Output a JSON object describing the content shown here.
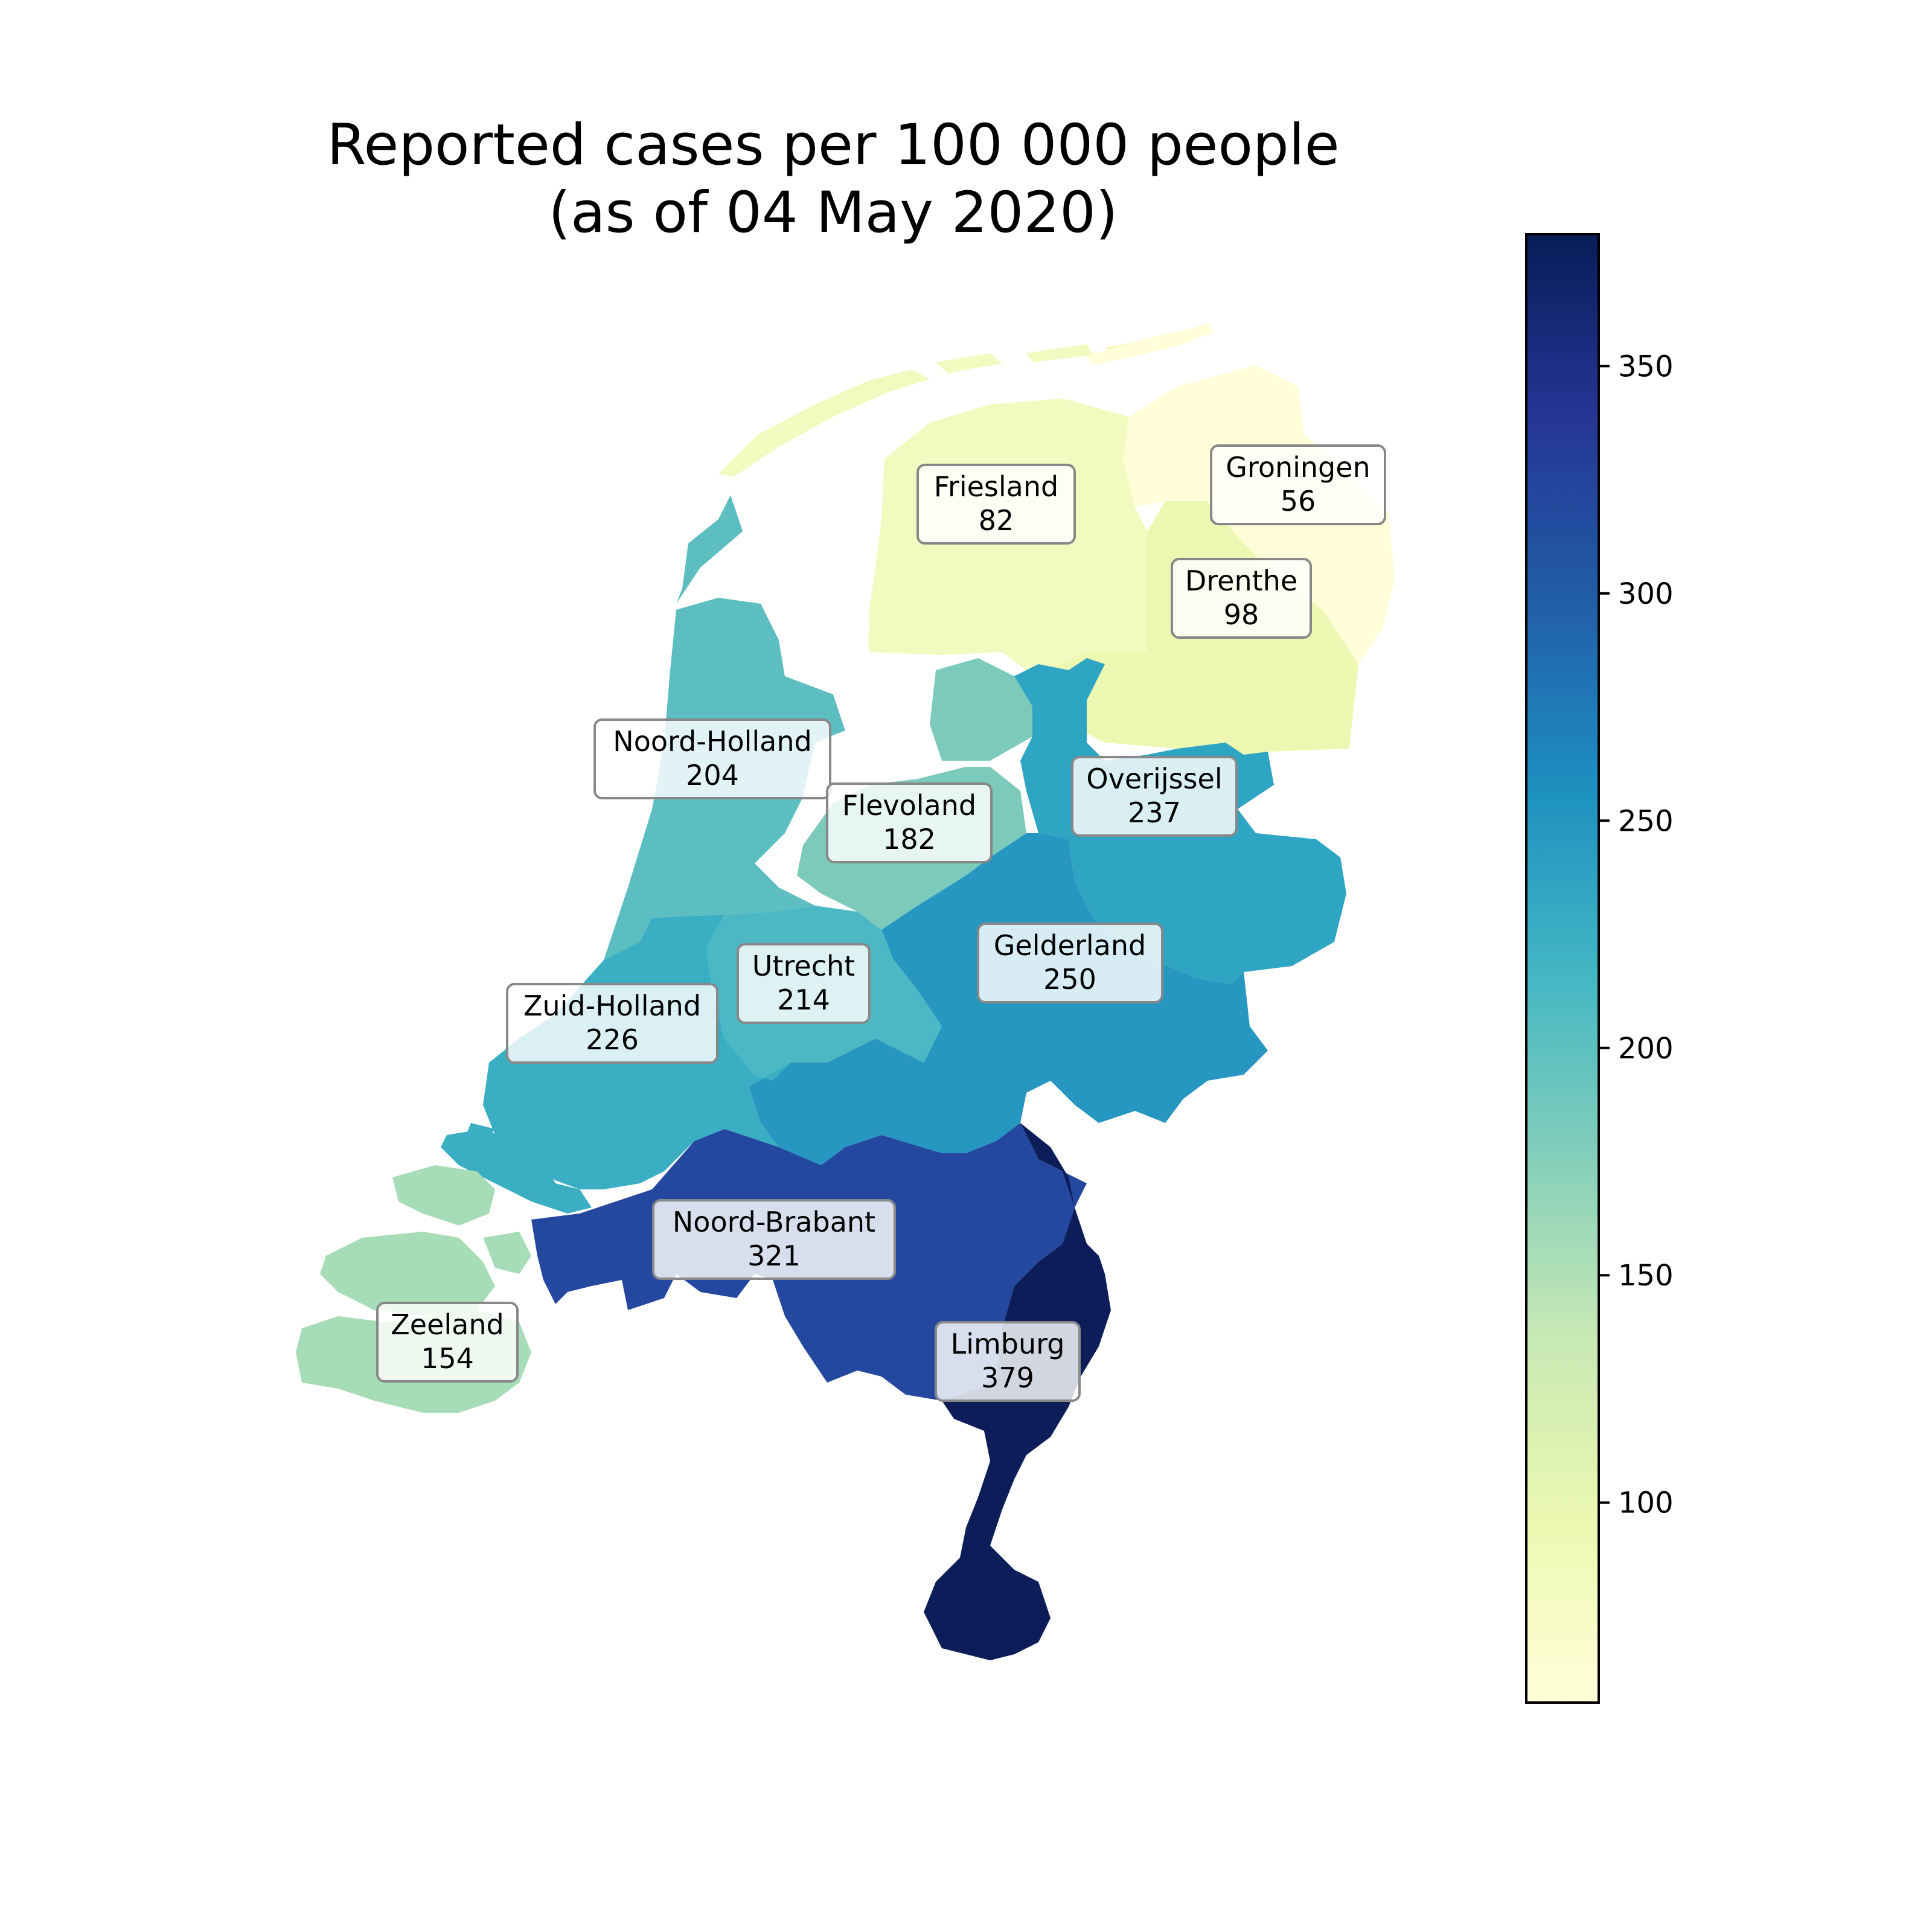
{
  "title": {
    "line1": "Reported cases per 100 000 people",
    "line2": "(as of 04 May 2020)"
  },
  "colorscale": {
    "name": "YlGnBu",
    "min": 56,
    "max": 379,
    "ticks": [
      {
        "value": 100,
        "label": "100"
      },
      {
        "value": 150,
        "label": "150"
      },
      {
        "value": 200,
        "label": "200"
      },
      {
        "value": 250,
        "label": "250"
      },
      {
        "value": 300,
        "label": "300"
      },
      {
        "value": 350,
        "label": "350"
      }
    ]
  },
  "provinces": [
    {
      "id": "groningen",
      "name": "Groningen",
      "value": "56",
      "color": "#fffed8"
    },
    {
      "id": "friesland",
      "name": "Friesland",
      "value": "82",
      "color": "#f3fabf"
    },
    {
      "id": "drenthe",
      "name": "Drenthe",
      "value": "98",
      "color": "#ecf8b2"
    },
    {
      "id": "zeeland",
      "name": "Zeeland",
      "value": "154",
      "color": "#a6dcb6"
    },
    {
      "id": "flevoland",
      "name": "Flevoland",
      "value": "182",
      "color": "#7ccabb"
    },
    {
      "id": "noord-holland",
      "name": "Noord-Holland",
      "value": "204",
      "color": "#5cbec1"
    },
    {
      "id": "utrecht",
      "name": "Utrecht",
      "value": "214",
      "color": "#4cb8c3"
    },
    {
      "id": "zuid-holland",
      "name": "Zuid-Holland",
      "value": "226",
      "color": "#3aaec3"
    },
    {
      "id": "overijssel",
      "name": "Overijssel",
      "value": "237",
      "color": "#2ea5c2"
    },
    {
      "id": "gelderland",
      "name": "Gelderland",
      "value": "250",
      "color": "#2597c0"
    },
    {
      "id": "noord-brabant",
      "name": "Noord-Brabant",
      "value": "321",
      "color": "#2448a0"
    },
    {
      "id": "limburg",
      "name": "Limburg",
      "value": "379",
      "color": "#0c1d59"
    }
  ]
}
